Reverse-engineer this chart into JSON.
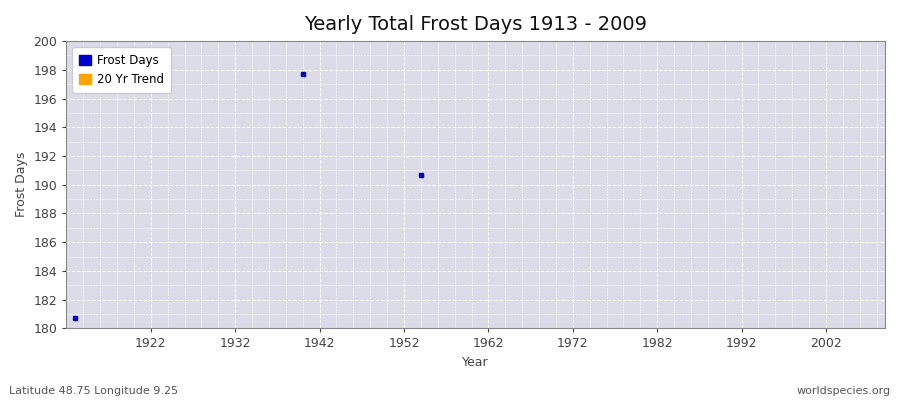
{
  "title": "Yearly Total Frost Days 1913 - 2009",
  "xlabel": "Year",
  "ylabel": "Frost Days",
  "xlim": [
    1912,
    2009
  ],
  "ylim": [
    180,
    200
  ],
  "yticks": [
    180,
    182,
    184,
    186,
    188,
    190,
    192,
    194,
    196,
    198,
    200
  ],
  "xticks": [
    1922,
    1932,
    1942,
    1952,
    1962,
    1972,
    1982,
    1992,
    2002
  ],
  "data_points": [
    {
      "year": 1913,
      "value": 180.7
    },
    {
      "year": 1940,
      "value": 197.7
    },
    {
      "year": 1954,
      "value": 190.7
    }
  ],
  "point_color": "#0000cc",
  "point_size": 6,
  "legend_labels": [
    "Frost Days",
    "20 Yr Trend"
  ],
  "legend_colors": [
    "#0000cc",
    "#ffa500"
  ],
  "plot_bg_color": "#dcdce8",
  "figure_bg_color": "#ffffff",
  "grid_color": "#ffffff",
  "title_fontsize": 14,
  "axis_label_fontsize": 9,
  "tick_fontsize": 9,
  "tick_color": "#444444",
  "spine_color": "#888888",
  "footer_left": "Latitude 48.75 Longitude 9.25",
  "footer_right": "worldspecies.org",
  "footer_fontsize": 8
}
